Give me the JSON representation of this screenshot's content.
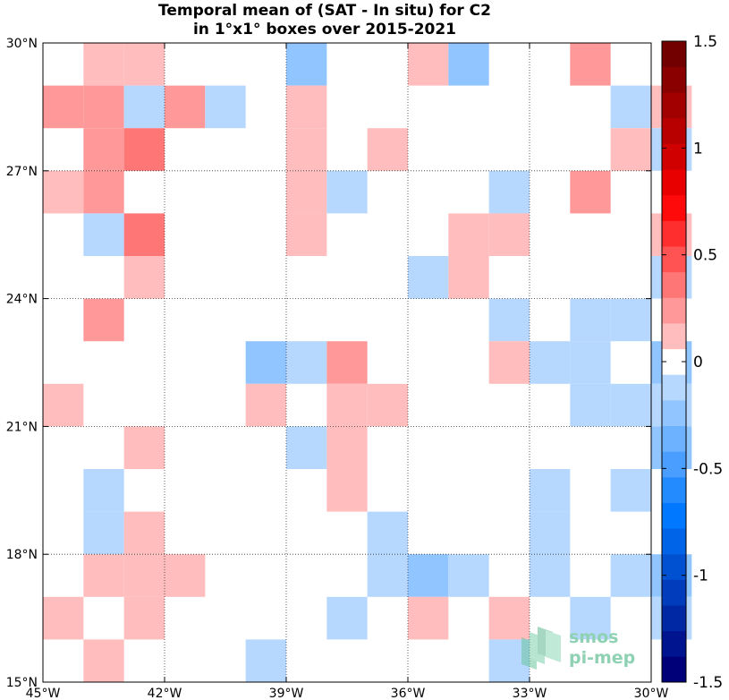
{
  "chart_data": {
    "type": "heatmap",
    "title_lines": [
      "Temporal mean of (SAT - In situ) for C2",
      "in 1°x1° boxes over 2015-2021"
    ],
    "x_range": [
      -45,
      -30
    ],
    "y_range": [
      15,
      30
    ],
    "x_ticks": [
      -45,
      -42,
      -39,
      -36,
      -33,
      -30
    ],
    "x_tick_labels": [
      "45°W",
      "42°W",
      "39°W",
      "36°W",
      "33°W",
      "30°W"
    ],
    "y_ticks": [
      30,
      27,
      24,
      21,
      18,
      15
    ],
    "y_tick_labels": [
      "30°N",
      "27°N",
      "24°N",
      "21°N",
      "18°N",
      "15°N"
    ],
    "grid": "dotted",
    "colorbar": {
      "min": -1.5,
      "max": 1.5,
      "levels": 25,
      "placement": "right",
      "ticks": [
        1.5,
        1,
        0.5,
        0,
        -0.5,
        -1,
        -1.5
      ],
      "tick_labels": [
        "1.5",
        "1",
        "0.5",
        "0",
        "-0.5",
        "-1",
        "-1.5"
      ]
    },
    "cells_note": "each cell: [lon_west, lat_south, value]",
    "cells": [
      [
        -44,
        29,
        0.15
      ],
      [
        -43,
        29,
        0.15
      ],
      [
        -39,
        29,
        -0.3
      ],
      [
        -36,
        29,
        0.15
      ],
      [
        -35,
        29,
        -0.25
      ],
      [
        -32,
        29,
        0.25
      ],
      [
        -45,
        28,
        0.25
      ],
      [
        -44,
        28,
        0.25
      ],
      [
        -43,
        28,
        -0.1
      ],
      [
        -42,
        28,
        0.25
      ],
      [
        -41,
        28,
        -0.1
      ],
      [
        -39,
        28,
        0.15
      ],
      [
        -31,
        28,
        -0.1
      ],
      [
        -30,
        28,
        0.15
      ],
      [
        -44,
        27,
        0.25
      ],
      [
        -43,
        27,
        0.4
      ],
      [
        -39,
        27,
        0.15
      ],
      [
        -37,
        27,
        0.15
      ],
      [
        -31,
        27,
        0.15
      ],
      [
        -30,
        27,
        -0.1
      ],
      [
        -45,
        26,
        0.15
      ],
      [
        -44,
        26,
        0.25
      ],
      [
        -39,
        26,
        0.15
      ],
      [
        -38,
        26,
        -0.1
      ],
      [
        -34,
        26,
        -0.1
      ],
      [
        -32,
        26,
        0.25
      ],
      [
        -44,
        25,
        -0.1
      ],
      [
        -43,
        25,
        0.4
      ],
      [
        -39,
        25,
        0.15
      ],
      [
        -35,
        25,
        0.15
      ],
      [
        -34,
        25,
        0.15
      ],
      [
        -30,
        25,
        0.15
      ],
      [
        -43,
        24,
        0.15
      ],
      [
        -36,
        24,
        -0.1
      ],
      [
        -35,
        24,
        0.15
      ],
      [
        -30,
        24,
        -0.1
      ],
      [
        -44,
        23,
        0.25
      ],
      [
        -34,
        23,
        -0.1
      ],
      [
        -32,
        23,
        -0.1
      ],
      [
        -31,
        23,
        -0.1
      ],
      [
        -40,
        22,
        -0.2
      ],
      [
        -39,
        22,
        -0.1
      ],
      [
        -38,
        22,
        0.25
      ],
      [
        -34,
        22,
        0.15
      ],
      [
        -33,
        22,
        -0.1
      ],
      [
        -32,
        22,
        -0.1
      ],
      [
        -30,
        22,
        -0.2
      ],
      [
        -45,
        21,
        0.15
      ],
      [
        -40,
        21,
        0.15
      ],
      [
        -38,
        21,
        0.15
      ],
      [
        -37,
        21,
        0.15
      ],
      [
        -32,
        21,
        -0.1
      ],
      [
        -31,
        21,
        -0.1
      ],
      [
        -30,
        21,
        -0.1
      ],
      [
        -43,
        20,
        0.15
      ],
      [
        -39,
        20,
        -0.1
      ],
      [
        -38,
        20,
        0.15
      ],
      [
        -30,
        20,
        -0.2
      ],
      [
        -44,
        19,
        -0.1
      ],
      [
        -38,
        19,
        0.15
      ],
      [
        -33,
        19,
        -0.1
      ],
      [
        -31,
        19,
        -0.1
      ],
      [
        -44,
        18,
        -0.1
      ],
      [
        -43,
        18,
        0.15
      ],
      [
        -37,
        18,
        -0.1
      ],
      [
        -33,
        18,
        -0.1
      ],
      [
        -44,
        17,
        0.15
      ],
      [
        -43,
        17,
        0.15
      ],
      [
        -42,
        17,
        0.15
      ],
      [
        -37,
        17,
        -0.1
      ],
      [
        -36,
        17,
        -0.2
      ],
      [
        -35,
        17,
        -0.1
      ],
      [
        -33,
        17,
        -0.1
      ],
      [
        -31,
        17,
        -0.1
      ],
      [
        -30,
        17,
        -0.2
      ],
      [
        -45,
        16,
        0.15
      ],
      [
        -43,
        16,
        0.15
      ],
      [
        -38,
        16,
        -0.1
      ],
      [
        -36,
        16,
        0.15
      ],
      [
        -34,
        16,
        0.15
      ],
      [
        -32,
        16,
        -0.1
      ],
      [
        -30,
        16,
        -0.1
      ],
      [
        -44,
        15,
        0.15
      ],
      [
        -40,
        15,
        -0.1
      ],
      [
        -34,
        15,
        -0.1
      ]
    ]
  },
  "logo": {
    "line1": "smos",
    "line2": "pi-mep"
  }
}
